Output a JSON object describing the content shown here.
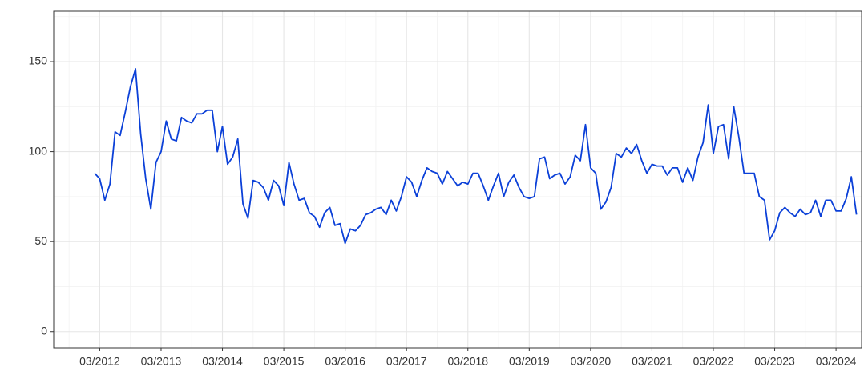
{
  "chart_data": {
    "type": "line",
    "x": [
      "2012-02",
      "2012-03",
      "2012-04",
      "2012-05",
      "2012-06",
      "2012-07",
      "2012-08",
      "2012-09",
      "2012-10",
      "2012-11",
      "2012-12",
      "2013-01",
      "2013-02",
      "2013-03",
      "2013-04",
      "2013-05",
      "2013-06",
      "2013-07",
      "2013-08",
      "2013-09",
      "2013-10",
      "2013-11",
      "2013-12",
      "2014-01",
      "2014-02",
      "2014-03",
      "2014-04",
      "2014-05",
      "2014-06",
      "2014-07",
      "2014-08",
      "2014-09",
      "2014-10",
      "2014-11",
      "2014-12",
      "2015-01",
      "2015-02",
      "2015-03",
      "2015-04",
      "2015-05",
      "2015-06",
      "2015-07",
      "2015-08",
      "2015-09",
      "2015-10",
      "2015-11",
      "2015-12",
      "2016-01",
      "2016-02",
      "2016-03",
      "2016-04",
      "2016-05",
      "2016-06",
      "2016-07",
      "2016-08",
      "2016-09",
      "2016-10",
      "2016-11",
      "2016-12",
      "2017-01",
      "2017-02",
      "2017-03",
      "2017-04",
      "2017-05",
      "2017-06",
      "2017-07",
      "2017-08",
      "2017-09",
      "2017-10",
      "2017-11",
      "2017-12",
      "2018-01",
      "2018-02",
      "2018-03",
      "2018-04",
      "2018-05",
      "2018-06",
      "2018-07",
      "2018-08",
      "2018-09",
      "2018-10",
      "2018-11",
      "2018-12",
      "2019-01",
      "2019-02",
      "2019-03",
      "2019-04",
      "2019-05",
      "2019-06",
      "2019-07",
      "2019-08",
      "2019-09",
      "2019-10",
      "2019-11",
      "2019-12",
      "2020-01",
      "2020-02",
      "2020-03",
      "2020-04",
      "2020-05",
      "2020-06",
      "2020-07",
      "2020-08",
      "2020-09",
      "2020-10",
      "2020-11",
      "2020-12",
      "2021-01",
      "2021-02",
      "2021-03",
      "2021-04",
      "2021-05",
      "2021-06",
      "2021-07",
      "2021-08",
      "2021-09",
      "2021-10",
      "2021-11",
      "2021-12",
      "2022-01",
      "2022-02",
      "2022-03",
      "2022-04",
      "2022-05",
      "2022-06",
      "2022-07",
      "2022-08",
      "2022-09",
      "2022-10",
      "2022-11",
      "2022-12",
      "2023-01",
      "2023-02",
      "2023-03",
      "2023-04",
      "2023-05",
      "2023-06",
      "2023-07",
      "2023-08",
      "2023-09",
      "2023-10",
      "2023-11",
      "2023-12",
      "2024-01",
      "2024-02",
      "2024-03",
      "2024-04",
      "2024-05",
      "2024-06",
      "2024-07"
    ],
    "series": [
      {
        "color": "#0b40d8",
        "values": [
          88,
          85,
          73,
          82,
          111,
          109,
          122,
          136,
          146,
          110,
          85,
          68,
          94,
          100,
          117,
          107,
          106,
          119,
          117,
          116,
          121,
          121,
          123,
          123,
          100,
          114,
          93,
          97,
          107,
          71,
          63,
          84,
          83,
          80,
          73,
          84,
          81,
          70,
          94,
          82,
          73,
          74,
          66,
          64,
          58,
          66,
          69,
          59,
          60,
          49,
          57,
          56,
          59,
          65,
          66,
          68,
          69,
          65,
          73,
          67,
          75,
          86,
          83,
          75,
          84,
          91,
          89,
          88,
          82,
          89,
          85,
          81,
          83,
          82,
          88,
          88,
          81,
          73,
          81,
          88,
          75,
          83,
          87,
          80,
          75,
          74,
          75,
          96,
          97,
          85,
          87,
          88,
          82,
          86,
          98,
          95,
          115,
          91,
          88,
          68,
          72,
          80,
          99,
          97,
          102,
          99,
          104,
          95,
          88,
          93,
          92,
          92,
          87,
          91,
          91,
          83,
          91,
          84,
          97,
          105,
          126,
          99,
          114,
          115,
          96,
          125,
          108,
          88,
          88,
          88,
          75,
          73,
          51,
          56,
          66,
          69,
          66,
          64,
          68,
          65,
          66,
          73,
          64,
          73,
          73,
          67,
          67,
          74,
          86,
          65
        ]
      }
    ],
    "xlim": [
      "2011-06",
      "2024-08"
    ],
    "xticks": [
      {
        "value": "2012-03",
        "label": "03/2012"
      },
      {
        "value": "2013-03",
        "label": "03/2013"
      },
      {
        "value": "2014-03",
        "label": "03/2014"
      },
      {
        "value": "2015-03",
        "label": "03/2015"
      },
      {
        "value": "2016-03",
        "label": "03/2016"
      },
      {
        "value": "2017-03",
        "label": "03/2017"
      },
      {
        "value": "2018-03",
        "label": "03/2018"
      },
      {
        "value": "2019-03",
        "label": "03/2019"
      },
      {
        "value": "2020-03",
        "label": "03/2020"
      },
      {
        "value": "2021-03",
        "label": "03/2021"
      },
      {
        "value": "2022-03",
        "label": "03/2022"
      },
      {
        "value": "2023-03",
        "label": "03/2023"
      },
      {
        "value": "2024-03",
        "label": "03/2024"
      }
    ],
    "ylim": [
      -9,
      178
    ],
    "yticks": [
      0,
      50,
      100,
      150
    ],
    "grid": true
  }
}
